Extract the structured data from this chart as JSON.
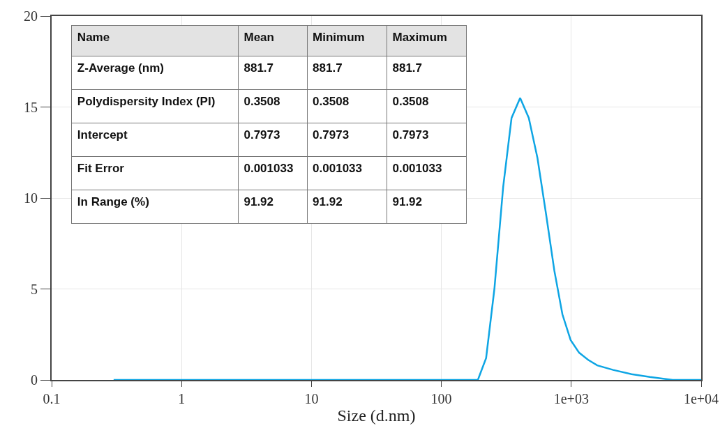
{
  "chart_data": {
    "type": "line",
    "xlabel": "Size (d.nm)",
    "log": "x",
    "grid": true,
    "xlim": [
      0.1,
      10000
    ],
    "xticks": [
      0.1,
      1,
      10,
      100,
      {
        "value": 1000,
        "label": "1e+03"
      },
      {
        "value": 10000,
        "label": "1e+04"
      }
    ],
    "ylim": [
      0,
      20
    ],
    "yticks": [
      0,
      5,
      10,
      15,
      20
    ],
    "series": [
      {
        "color": "#0ea5e4",
        "x": [
          0.3,
          191,
          221,
          256,
          299,
          347,
          404,
          471,
          549,
          640,
          741,
          855,
          988,
          1148,
          1350,
          1585,
          2100,
          2910,
          4030,
          6030,
          10000
        ],
        "values": [
          0,
          0,
          1.2,
          5.0,
          10.6,
          14.4,
          15.5,
          14.4,
          12.2,
          9.1,
          6.0,
          3.6,
          2.2,
          1.5,
          1.1,
          0.8,
          0.55,
          0.32,
          0.16,
          0,
          0
        ]
      }
    ],
    "annotations": [
      "Name",
      "Mean",
      "Minimum",
      "Maximum",
      "Z-Average (nm)",
      "881.7",
      "881.7",
      "881.7",
      "Polydispersity Index (PI)",
      "0.3508",
      "0.3508",
      "0.3508",
      "Intercept",
      "0.7973",
      "0.7973",
      "0.7973",
      "Fit Error",
      "0.001033",
      "0.001033",
      "0.001033",
      "In Range (%)",
      "91.92",
      "91.92",
      "91.92"
    ]
  }
}
